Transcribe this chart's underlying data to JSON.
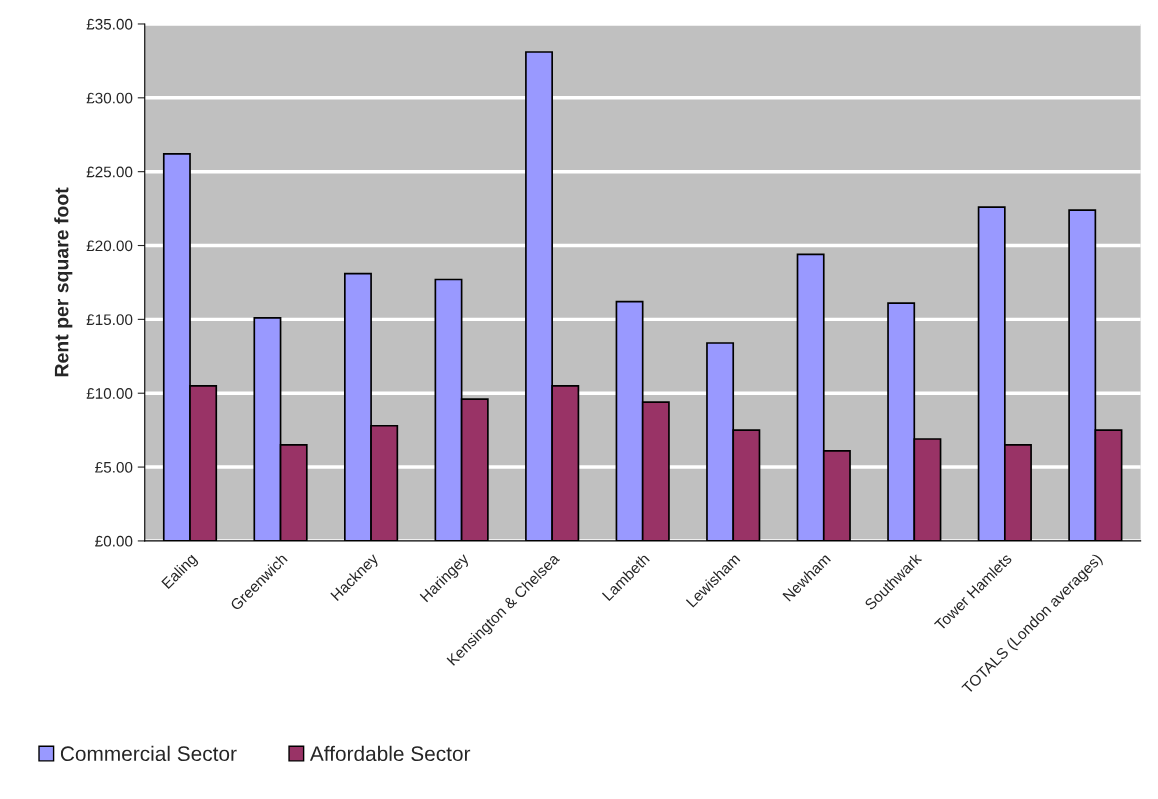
{
  "chart_data": {
    "type": "bar",
    "ylabel": "Rent per square foot",
    "categories": [
      "Ealing",
      "Greenwich",
      "Hackney",
      "Haringey",
      "Kensington & Chelsea",
      "Lambeth",
      "Lewisham",
      "Newham",
      "Southwark",
      "Tower Hamlets",
      "TOTALS (London averages)"
    ],
    "series": [
      {
        "name": "Commercial Sector",
        "color": "#9999ff",
        "values": [
          26.2,
          15.1,
          18.1,
          17.7,
          33.1,
          16.2,
          13.4,
          19.4,
          16.1,
          22.6,
          22.4
        ]
      },
      {
        "name": "Affordable Sector",
        "color": "#993366",
        "values": [
          10.5,
          6.5,
          7.8,
          9.6,
          10.5,
          9.4,
          7.5,
          6.1,
          6.9,
          6.5,
          7.5
        ]
      }
    ],
    "ylim": [
      0,
      35
    ],
    "yticks": [
      {
        "value": 0,
        "label": "£0.00"
      },
      {
        "value": 5,
        "label": "£5.00"
      },
      {
        "value": 10,
        "label": "£10.00"
      },
      {
        "value": 15,
        "label": "£15.00"
      },
      {
        "value": 20,
        "label": "£20.00"
      },
      {
        "value": 25,
        "label": "£25.00"
      },
      {
        "value": 30,
        "label": "£30.00"
      },
      {
        "value": 35,
        "label": "£35.00"
      }
    ],
    "grid": "y",
    "legend": "bottom left"
  }
}
